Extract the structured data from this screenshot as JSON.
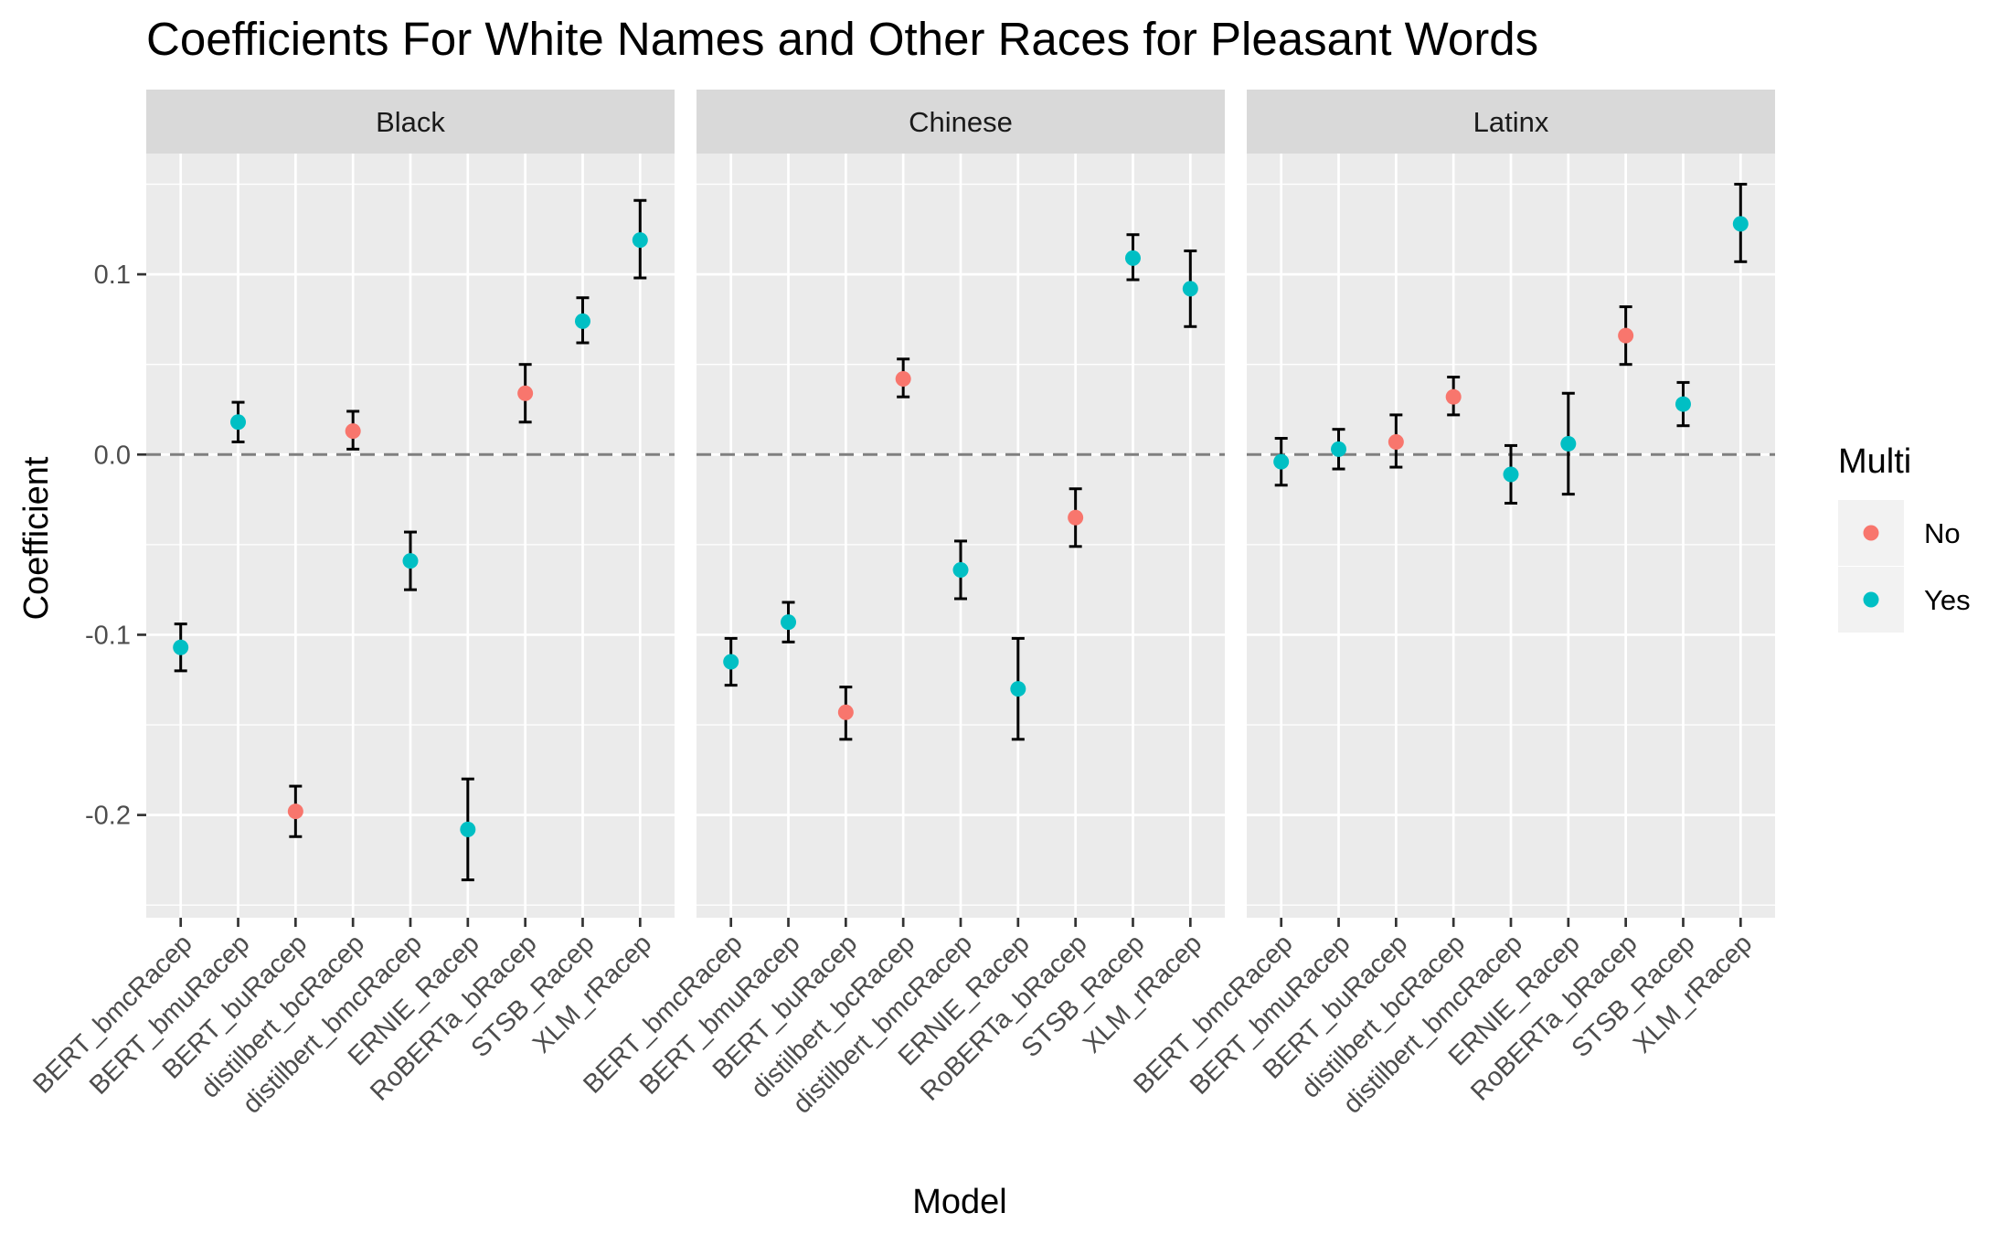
{
  "chart_data": {
    "type": "scatter",
    "title": "Coefficients For White Names and Other Races for Pleasant Words",
    "xlabel": "Model",
    "ylabel": "Coefficient",
    "ylim": [
      -0.257,
      0.167
    ],
    "yticks": [
      -0.2,
      -0.1,
      0.0,
      0.1
    ],
    "ytick_labels": [
      "-0.2",
      "-0.1",
      "0.0",
      "0.1"
    ],
    "reference_line": 0.0,
    "grid": true,
    "categories": [
      "BERT_bmcRacep",
      "BERT_bmuRacep",
      "BERT_buRacep",
      "distilbert_bcRacep",
      "distilbert_bmcRacep",
      "ERNIE_Racep",
      "RoBERTa_bRacep",
      "STSB_Racep",
      "XLM_rRacep"
    ],
    "legend": {
      "title": "Multi",
      "placement": "right",
      "items": [
        {
          "label": "No",
          "color": "#F8766D"
        },
        {
          "label": "Yes",
          "color": "#00BFC4"
        }
      ]
    },
    "panels": [
      {
        "name": "Black",
        "points": [
          {
            "model": "BERT_bmcRacep",
            "value": -0.107,
            "lower": -0.12,
            "upper": -0.094,
            "multi": "Yes"
          },
          {
            "model": "BERT_bmuRacep",
            "value": 0.018,
            "lower": 0.007,
            "upper": 0.029,
            "multi": "Yes"
          },
          {
            "model": "BERT_buRacep",
            "value": -0.198,
            "lower": -0.212,
            "upper": -0.184,
            "multi": "No"
          },
          {
            "model": "distilbert_bcRacep",
            "value": 0.013,
            "lower": 0.003,
            "upper": 0.024,
            "multi": "No"
          },
          {
            "model": "distilbert_bmcRacep",
            "value": -0.059,
            "lower": -0.075,
            "upper": -0.043,
            "multi": "Yes"
          },
          {
            "model": "ERNIE_Racep",
            "value": -0.208,
            "lower": -0.236,
            "upper": -0.18,
            "multi": "Yes"
          },
          {
            "model": "RoBERTa_bRacep",
            "value": 0.034,
            "lower": 0.018,
            "upper": 0.05,
            "multi": "No"
          },
          {
            "model": "STSB_Racep",
            "value": 0.074,
            "lower": 0.062,
            "upper": 0.087,
            "multi": "Yes"
          },
          {
            "model": "XLM_rRacep",
            "value": 0.119,
            "lower": 0.098,
            "upper": 0.141,
            "multi": "Yes"
          }
        ]
      },
      {
        "name": "Chinese",
        "points": [
          {
            "model": "BERT_bmcRacep",
            "value": -0.115,
            "lower": -0.128,
            "upper": -0.102,
            "multi": "Yes"
          },
          {
            "model": "BERT_bmuRacep",
            "value": -0.093,
            "lower": -0.104,
            "upper": -0.082,
            "multi": "Yes"
          },
          {
            "model": "BERT_buRacep",
            "value": -0.143,
            "lower": -0.158,
            "upper": -0.129,
            "multi": "No"
          },
          {
            "model": "distilbert_bcRacep",
            "value": 0.042,
            "lower": 0.032,
            "upper": 0.053,
            "multi": "No"
          },
          {
            "model": "distilbert_bmcRacep",
            "value": -0.064,
            "lower": -0.08,
            "upper": -0.048,
            "multi": "Yes"
          },
          {
            "model": "ERNIE_Racep",
            "value": -0.13,
            "lower": -0.158,
            "upper": -0.102,
            "multi": "Yes"
          },
          {
            "model": "RoBERTa_bRacep",
            "value": -0.035,
            "lower": -0.051,
            "upper": -0.019,
            "multi": "No"
          },
          {
            "model": "STSB_Racep",
            "value": 0.109,
            "lower": 0.097,
            "upper": 0.122,
            "multi": "Yes"
          },
          {
            "model": "XLM_rRacep",
            "value": 0.092,
            "lower": 0.071,
            "upper": 0.113,
            "multi": "Yes"
          }
        ]
      },
      {
        "name": "Latinx",
        "points": [
          {
            "model": "BERT_bmcRacep",
            "value": -0.004,
            "lower": -0.017,
            "upper": 0.009,
            "multi": "Yes"
          },
          {
            "model": "BERT_bmuRacep",
            "value": 0.003,
            "lower": -0.008,
            "upper": 0.014,
            "multi": "Yes"
          },
          {
            "model": "BERT_buRacep",
            "value": 0.007,
            "lower": -0.007,
            "upper": 0.022,
            "multi": "No"
          },
          {
            "model": "distilbert_bcRacep",
            "value": 0.032,
            "lower": 0.022,
            "upper": 0.043,
            "multi": "No"
          },
          {
            "model": "distilbert_bmcRacep",
            "value": -0.011,
            "lower": -0.027,
            "upper": 0.005,
            "multi": "Yes"
          },
          {
            "model": "ERNIE_Racep",
            "value": 0.006,
            "lower": -0.022,
            "upper": 0.034,
            "multi": "Yes"
          },
          {
            "model": "RoBERTa_bRacep",
            "value": 0.066,
            "lower": 0.05,
            "upper": 0.082,
            "multi": "No"
          },
          {
            "model": "STSB_Racep",
            "value": 0.028,
            "lower": 0.016,
            "upper": 0.04,
            "multi": "Yes"
          },
          {
            "model": "XLM_rRacep",
            "value": 0.128,
            "lower": 0.107,
            "upper": 0.15,
            "multi": "Yes"
          }
        ]
      }
    ]
  }
}
